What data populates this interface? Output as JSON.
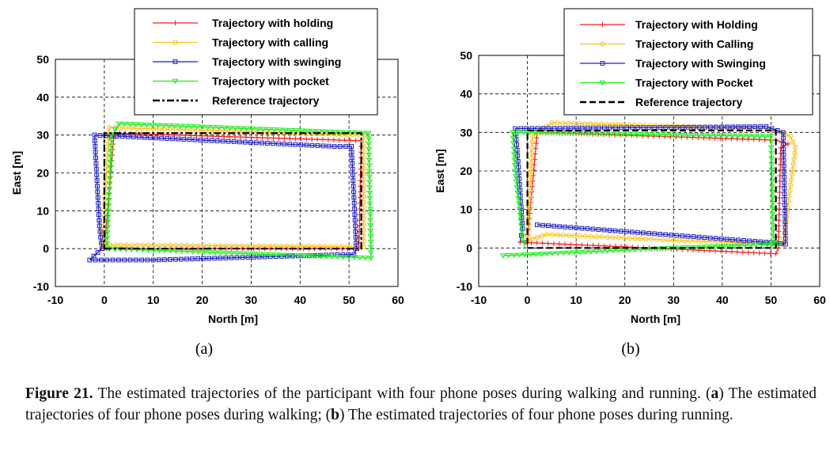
{
  "colors": {
    "holding": "#ff1a1a",
    "calling": "#ffc21a",
    "swinging": "#1a1acc",
    "pocket": "#1aee1a",
    "reference": "#000000"
  },
  "chart_data": [
    {
      "type": "line",
      "panel_label": "(a)",
      "xlabel": "North [m]",
      "ylabel": "East [m]",
      "xlim": [
        -10,
        60
      ],
      "ylim": [
        -10,
        50
      ],
      "xticks": [
        "-10",
        "0",
        "10",
        "20",
        "30",
        "40",
        "50",
        "60"
      ],
      "yticks": [
        "-10",
        "0",
        "10",
        "20",
        "30",
        "40",
        "50"
      ],
      "grid": true,
      "legend_position": "top-right",
      "series": [
        {
          "name": "Trajectory with holding",
          "key": "holding",
          "marker": "plus",
          "style": "solid",
          "points": [
            [
              0,
              0
            ],
            [
              52,
              0
            ],
            [
              52.5,
              28.5
            ],
            [
              2,
              30.5
            ],
            [
              0,
              0
            ]
          ]
        },
        {
          "name": "Trajectory with calling",
          "key": "calling",
          "marker": "circle",
          "style": "solid",
          "points": [
            [
              0,
              1
            ],
            [
              53,
              0.5
            ],
            [
              53,
              30
            ],
            [
              1,
              32
            ],
            [
              -0.5,
              0
            ],
            [
              0,
              1
            ]
          ]
        },
        {
          "name": "Trajectory with swinging",
          "key": "swinging",
          "marker": "square",
          "style": "solid",
          "points": [
            [
              -3,
              -3
            ],
            [
              10,
              -3
            ],
            [
              51,
              -1.5
            ],
            [
              51.5,
              0
            ],
            [
              50.5,
              27
            ],
            [
              47,
              27
            ],
            [
              -2,
              30
            ],
            [
              -1,
              6
            ],
            [
              -0.5,
              0
            ],
            [
              -3,
              -3
            ]
          ]
        },
        {
          "name": "Trajectory with pocket",
          "key": "pocket",
          "marker": "triangle",
          "style": "solid",
          "points": [
            [
              1,
              0
            ],
            [
              54.5,
              -2.5
            ],
            [
              54,
              30.5
            ],
            [
              3,
              33
            ],
            [
              1.5,
              30
            ],
            [
              0.5,
              0
            ],
            [
              1,
              0
            ]
          ]
        },
        {
          "name": "Reference trajectory",
          "key": "reference",
          "marker": "none",
          "style": "dashdot",
          "points": [
            [
              0,
              0
            ],
            [
              52.5,
              0
            ],
            [
              52.5,
              30.5
            ],
            [
              0,
              30.5
            ],
            [
              0,
              0
            ]
          ]
        }
      ]
    },
    {
      "type": "line",
      "panel_label": "(b)",
      "xlabel": "North [m]",
      "ylabel": "East [m]",
      "xlim": [
        -10,
        60
      ],
      "ylim": [
        -10,
        50
      ],
      "xticks": [
        "-10",
        "0",
        "10",
        "20",
        "30",
        "40",
        "50",
        "60"
      ],
      "yticks": [
        "-10",
        "0",
        "10",
        "20",
        "30",
        "40",
        "50"
      ],
      "grid": true,
      "legend_position": "top-right",
      "series": [
        {
          "name": "Trajectory with Holding",
          "key": "holding",
          "marker": "plus",
          "style": "solid",
          "points": [
            [
              -1.5,
              1.5
            ],
            [
              25,
              0
            ],
            [
              51,
              -1.5
            ],
            [
              51.5,
              0
            ],
            [
              52,
              26
            ],
            [
              53.5,
              27
            ],
            [
              51,
              28
            ],
            [
              2,
              30
            ],
            [
              0,
              2
            ],
            [
              -1.5,
              1.5
            ]
          ]
        },
        {
          "name": "Trajectory with Calling",
          "key": "calling",
          "marker": "circle",
          "style": "solid",
          "points": [
            [
              4,
              3.5
            ],
            [
              30,
              2
            ],
            [
              52.5,
              1
            ],
            [
              55,
              26
            ],
            [
              54,
              29
            ],
            [
              49,
              31
            ],
            [
              5,
              32.5
            ],
            [
              1,
              29
            ],
            [
              0,
              2
            ],
            [
              4,
              3.5
            ]
          ]
        },
        {
          "name": "Trajectory with Swinging",
          "key": "swinging",
          "marker": "square",
          "style": "solid",
          "points": [
            [
              2,
              6
            ],
            [
              49,
              1.5
            ],
            [
              53,
              1
            ],
            [
              52.5,
              30
            ],
            [
              49,
              31.5
            ],
            [
              -2.5,
              31
            ],
            [
              -2,
              24
            ],
            [
              -1.5,
              15
            ],
            [
              -1,
              5
            ],
            [
              -1.5,
              1.5
            ]
          ]
        },
        {
          "name": "Trajectory with Pocket",
          "key": "pocket",
          "marker": "triangle",
          "style": "solid",
          "points": [
            [
              -5,
              -2
            ],
            [
              30,
              0
            ],
            [
              51.5,
              1
            ],
            [
              50.5,
              1.5
            ],
            [
              50,
              29
            ],
            [
              -3,
              30
            ],
            [
              -2.5,
              20
            ],
            [
              -1,
              3
            ],
            [
              -0.5,
              0
            ]
          ]
        },
        {
          "name": "Reference trajectory",
          "key": "reference",
          "marker": "none",
          "style": "dash",
          "points": [
            [
              0,
              0
            ],
            [
              51,
              0
            ],
            [
              51,
              30.5
            ],
            [
              0,
              30.5
            ],
            [
              0,
              0
            ]
          ]
        }
      ]
    }
  ],
  "caption": {
    "label": "Figure 21.",
    "text_1": " The estimated trajectories of the participant with four phone poses during walking and running.  (",
    "a": "a",
    "text_2": ") The estimated trajectories of four phone poses during walking; (",
    "b": "b",
    "text_3": ") The estimated trajectories of four phone poses during running."
  }
}
